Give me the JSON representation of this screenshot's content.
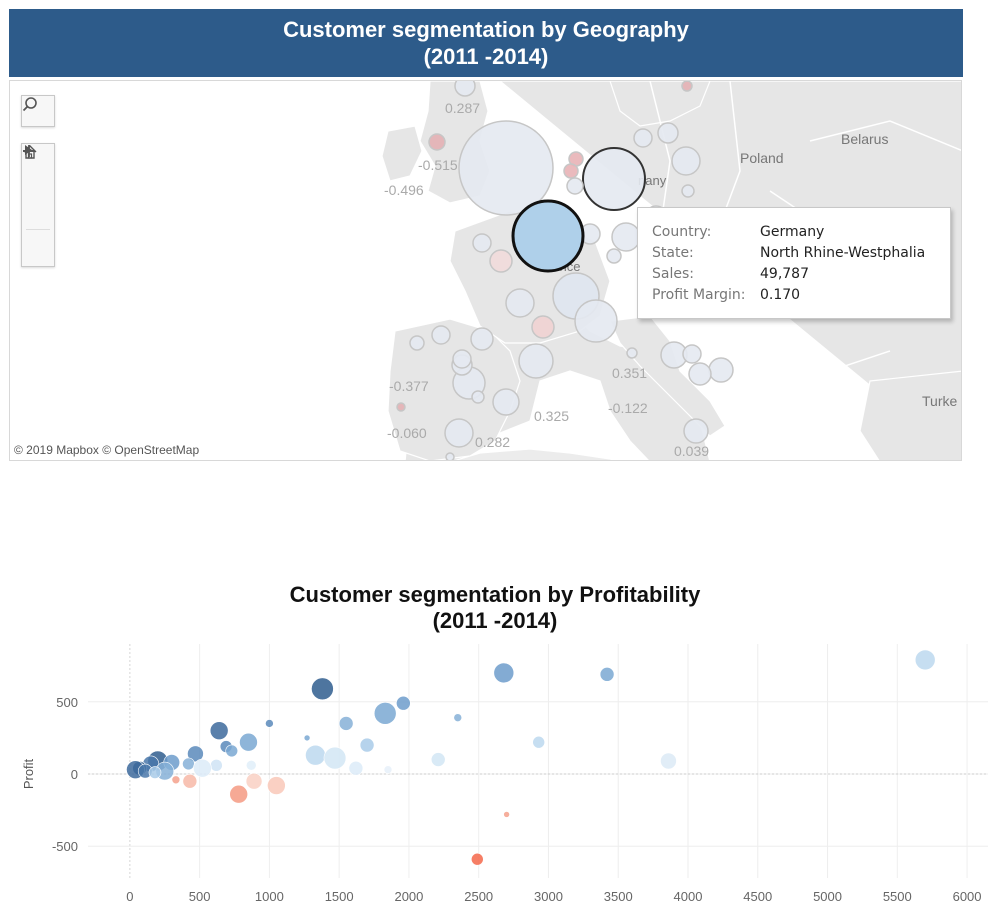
{
  "map": {
    "title_line1": "Customer segmentation by Geography",
    "title_line2": "(2011 -2014)",
    "attribution": "© 2019 Mapbox  © OpenStreetMap",
    "country_labels": [
      {
        "text": "Belarus"
      },
      {
        "text": "Poland"
      },
      {
        "text": "Turke"
      },
      {
        "text": "nany"
      },
      {
        "text": "France"
      }
    ],
    "value_labels": [
      "0.287",
      "-0.515",
      "-0.496",
      "-0.377",
      "-0.060",
      "0.282",
      "0.325",
      "0.351",
      "-0.122",
      "0.039"
    ],
    "tooltip": {
      "country_label": "Country:",
      "country_value": "Germany",
      "state_label": "State:",
      "state_value": "North Rhine-Westphalia",
      "sales_label": "Sales:",
      "sales_value": "49,787",
      "margin_label": "Profit Margin:",
      "margin_value": "0.170"
    },
    "tools": {
      "search_icon": "search-icon",
      "zoom_in_icon": "plus-icon",
      "zoom_out_icon": "minus-icon",
      "home_icon": "home-icon",
      "play_icon": "play-icon"
    },
    "colors": {
      "header_bg": "#2d5b8a",
      "land": "#e6e6e6",
      "highlight_bubble": "#afd0ea",
      "positive_bubble": "#dfe6ef",
      "negative_bubble": "#e8b2b6"
    }
  },
  "scatter": {
    "title_line1": "Customer segmentation by Profitability",
    "title_line2": "(2011 -2014)"
  },
  "chart_data": {
    "type": "scatter",
    "title": "Customer segmentation by Profitability\n(2011 -2014)",
    "xlabel": "",
    "ylabel": "Profit",
    "xlim": [
      -300,
      6150
    ],
    "ylim": [
      -720,
      900
    ],
    "x_ticks": [
      0,
      500,
      1000,
      1500,
      2000,
      2500,
      3000,
      3500,
      4000,
      4500,
      5000,
      5500,
      6000
    ],
    "y_ticks": [
      -500,
      0,
      500
    ],
    "grid": true,
    "color_scale": {
      "low": "#f4674a",
      "mid": "#e8f2fb",
      "high": "#2f5d8e"
    },
    "points": [
      {
        "x": 5700,
        "y": 790,
        "size": 10,
        "color": "#bcd8ee"
      },
      {
        "x": 3420,
        "y": 690,
        "size": 7,
        "color": "#7aa8d2"
      },
      {
        "x": 2680,
        "y": 700,
        "size": 10,
        "color": "#6d9ccb"
      },
      {
        "x": 1380,
        "y": 590,
        "size": 11,
        "color": "#2f5d8e"
      },
      {
        "x": 1960,
        "y": 490,
        "size": 7,
        "color": "#6d9ccb"
      },
      {
        "x": 1830,
        "y": 420,
        "size": 11,
        "color": "#7aa8d2"
      },
      {
        "x": 2350,
        "y": 390,
        "size": 4,
        "color": "#86b0d7"
      },
      {
        "x": 1550,
        "y": 350,
        "size": 7,
        "color": "#86b0d7"
      },
      {
        "x": 1000,
        "y": 350,
        "size": 4,
        "color": "#5a89bb"
      },
      {
        "x": 640,
        "y": 300,
        "size": 9,
        "color": "#3d6a9c"
      },
      {
        "x": 850,
        "y": 220,
        "size": 9,
        "color": "#7aa8d2"
      },
      {
        "x": 1270,
        "y": 250,
        "size": 3,
        "color": "#7aa8d2"
      },
      {
        "x": 2930,
        "y": 220,
        "size": 6,
        "color": "#bcd8ee"
      },
      {
        "x": 1700,
        "y": 200,
        "size": 7,
        "color": "#a9cbe9"
      },
      {
        "x": 690,
        "y": 190,
        "size": 6,
        "color": "#5a89bb"
      },
      {
        "x": 730,
        "y": 160,
        "size": 6,
        "color": "#7aa8d2"
      },
      {
        "x": 470,
        "y": 140,
        "size": 8,
        "color": "#5a89bb"
      },
      {
        "x": 1330,
        "y": 130,
        "size": 10,
        "color": "#bcd8ee"
      },
      {
        "x": 1470,
        "y": 110,
        "size": 11,
        "color": "#d2e6f5"
      },
      {
        "x": 2210,
        "y": 100,
        "size": 7,
        "color": "#d2e6f5"
      },
      {
        "x": 3860,
        "y": 90,
        "size": 8,
        "color": "#dceaf6"
      },
      {
        "x": 200,
        "y": 90,
        "size": 10,
        "color": "#2f5d8e"
      },
      {
        "x": 300,
        "y": 80,
        "size": 8,
        "color": "#6d9ccb"
      },
      {
        "x": 150,
        "y": 70,
        "size": 8,
        "color": "#4a78aa"
      },
      {
        "x": 420,
        "y": 70,
        "size": 6,
        "color": "#86b0d7"
      },
      {
        "x": 620,
        "y": 60,
        "size": 6,
        "color": "#cfe3f4"
      },
      {
        "x": 870,
        "y": 60,
        "size": 5,
        "color": "#e1eef9"
      },
      {
        "x": 1620,
        "y": 40,
        "size": 7,
        "color": "#dcebf8"
      },
      {
        "x": 520,
        "y": 40,
        "size": 9,
        "color": "#dcebf8"
      },
      {
        "x": 70,
        "y": 40,
        "size": 7,
        "color": "#2f5d8e"
      },
      {
        "x": 40,
        "y": 30,
        "size": 9,
        "color": "#3d6a9c"
      },
      {
        "x": 110,
        "y": 20,
        "size": 7,
        "color": "#4a78aa"
      },
      {
        "x": 250,
        "y": 20,
        "size": 9,
        "color": "#86b0d7"
      },
      {
        "x": 180,
        "y": 10,
        "size": 6,
        "color": "#a9cbe9"
      },
      {
        "x": 1850,
        "y": 30,
        "size": 4,
        "color": "#e6f0f9"
      },
      {
        "x": 330,
        "y": -40,
        "size": 4,
        "color": "#f4a18c"
      },
      {
        "x": 430,
        "y": -50,
        "size": 7,
        "color": "#f7b9a7"
      },
      {
        "x": 890,
        "y": -50,
        "size": 8,
        "color": "#f9d0c3"
      },
      {
        "x": 1050,
        "y": -80,
        "size": 9,
        "color": "#f9c8b8"
      },
      {
        "x": 780,
        "y": -140,
        "size": 9,
        "color": "#f49a82"
      },
      {
        "x": 2700,
        "y": -280,
        "size": 3,
        "color": "#f4a18c"
      },
      {
        "x": 2490,
        "y": -590,
        "size": 6,
        "color": "#f4674a"
      }
    ]
  }
}
